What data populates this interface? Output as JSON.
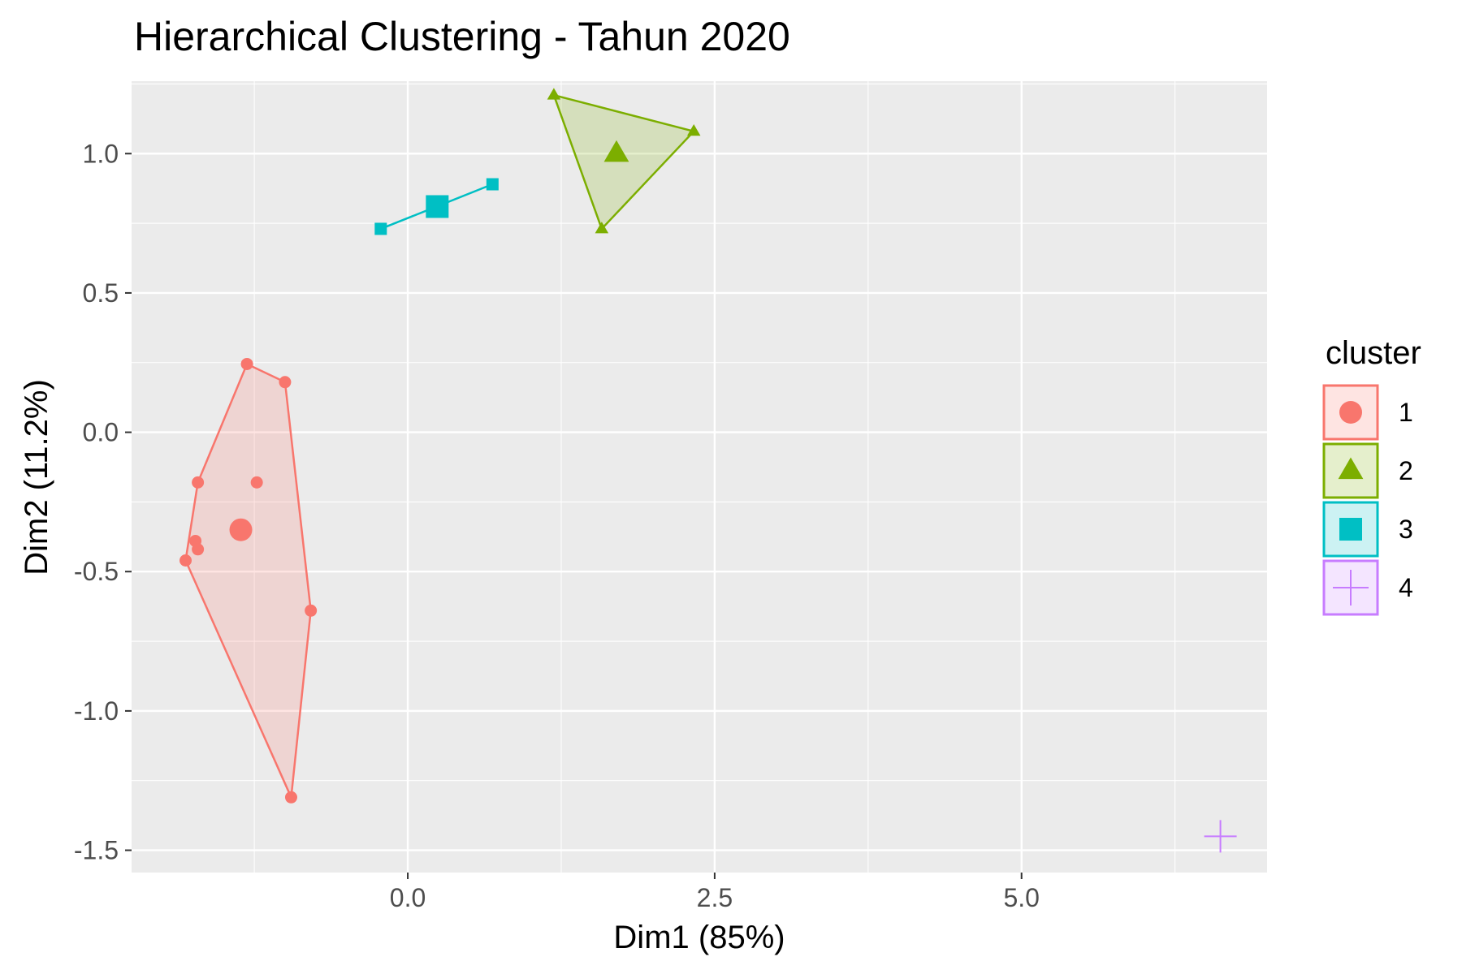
{
  "chart_data": {
    "type": "scatter",
    "title": "Hierarchical Clustering - Tahun 2020",
    "xlabel": "Dim1 (85%)",
    "ylabel": "Dim2 (11.2%)",
    "xlim": [
      -2.25,
      7.0
    ],
    "ylim": [
      -1.58,
      1.26
    ],
    "x_ticks": [
      {
        "value": 0.0,
        "label": "0.0"
      },
      {
        "value": 2.5,
        "label": "2.5"
      },
      {
        "value": 5.0,
        "label": "5.0"
      }
    ],
    "y_ticks": [
      {
        "value": 1.0,
        "label": "1.0"
      },
      {
        "value": 0.5,
        "label": "0.5"
      },
      {
        "value": 0.0,
        "label": "0.0"
      },
      {
        "value": -0.5,
        "label": "-0.5"
      },
      {
        "value": -1.0,
        "label": "-1.0"
      },
      {
        "value": -1.5,
        "label": "-1.5"
      }
    ],
    "grid": true,
    "legend": {
      "title": "cluster",
      "position": "right"
    },
    "series": [
      {
        "name": "1",
        "color": "#F8766D",
        "shape": "circle",
        "points": [
          {
            "x": -1.31,
            "y": 0.245
          },
          {
            "x": -1.0,
            "y": 0.18
          },
          {
            "x": -1.71,
            "y": -0.18
          },
          {
            "x": -1.23,
            "y": -0.18
          },
          {
            "x": -1.73,
            "y": -0.39
          },
          {
            "x": -1.71,
            "y": -0.42
          },
          {
            "x": -1.81,
            "y": -0.46
          },
          {
            "x": -0.79,
            "y": -0.64
          },
          {
            "x": -0.95,
            "y": -1.31
          }
        ],
        "hull": [
          {
            "x": -1.31,
            "y": 0.245
          },
          {
            "x": -1.0,
            "y": 0.18
          },
          {
            "x": -0.79,
            "y": -0.64
          },
          {
            "x": -0.95,
            "y": -1.31
          },
          {
            "x": -1.81,
            "y": -0.46
          },
          {
            "x": -1.71,
            "y": -0.18
          }
        ],
        "center": {
          "x": -1.36,
          "y": -0.35
        }
      },
      {
        "name": "2",
        "color": "#7CAE00",
        "shape": "triangle",
        "points": [
          {
            "x": 1.19,
            "y": 1.21
          },
          {
            "x": 2.33,
            "y": 1.08
          },
          {
            "x": 1.58,
            "y": 0.73
          }
        ],
        "hull": [
          {
            "x": 1.19,
            "y": 1.21
          },
          {
            "x": 2.33,
            "y": 1.08
          },
          {
            "x": 1.58,
            "y": 0.73
          }
        ],
        "center": {
          "x": 1.7,
          "y": 1.0
        }
      },
      {
        "name": "3",
        "color": "#00BFC4",
        "shape": "square",
        "points": [
          {
            "x": -0.22,
            "y": 0.73
          },
          {
            "x": 0.69,
            "y": 0.89
          }
        ],
        "hull": [
          {
            "x": -0.22,
            "y": 0.73
          },
          {
            "x": 0.69,
            "y": 0.89
          }
        ],
        "center": {
          "x": 0.24,
          "y": 0.81
        }
      },
      {
        "name": "4",
        "color": "#C77CFF",
        "shape": "cross",
        "points": [
          {
            "x": 6.62,
            "y": -1.45
          }
        ],
        "hull": [],
        "center": {
          "x": 6.62,
          "y": -1.45
        }
      }
    ]
  }
}
